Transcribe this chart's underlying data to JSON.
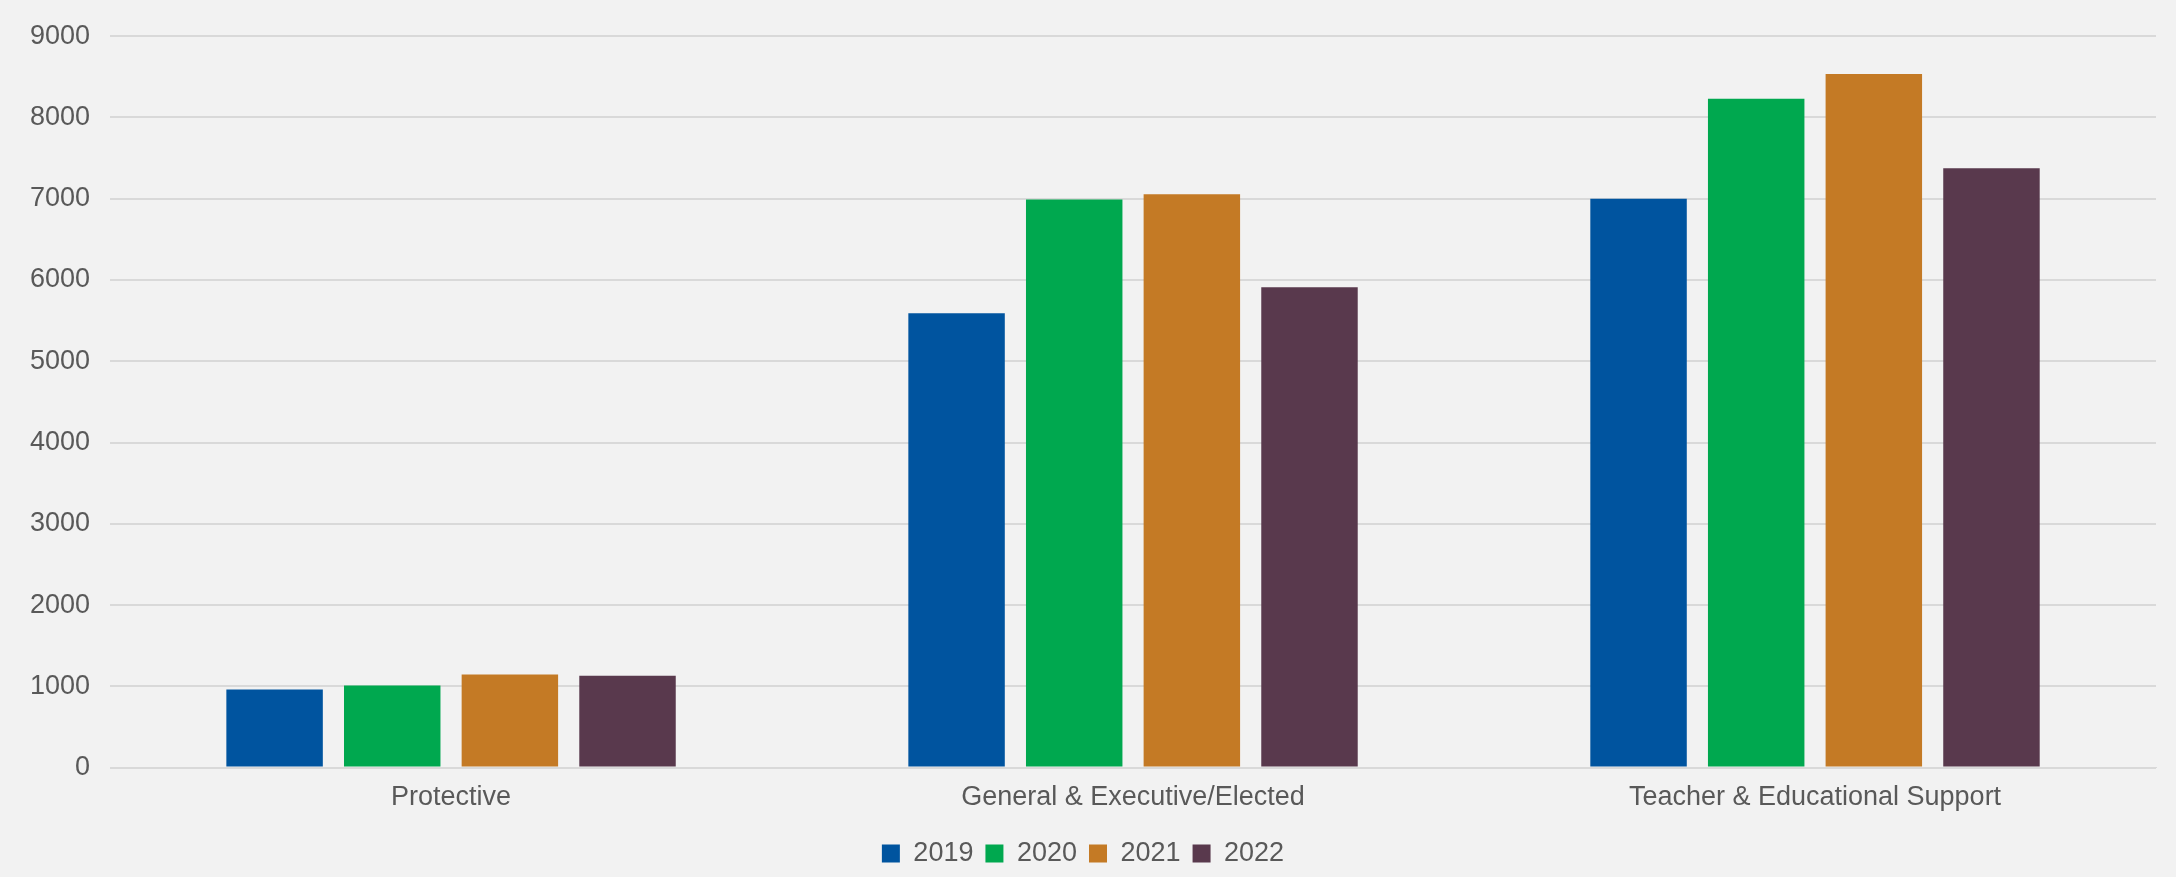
{
  "chart_data": {
    "type": "bar",
    "categories": [
      "Protective",
      "General & Executive/Elected",
      "Teacher & Educational Support"
    ],
    "series": [
      {
        "name": "2019",
        "color": "#00549f",
        "values": [
          960,
          5590,
          7000
        ]
      },
      {
        "name": "2020",
        "color": "#00a84f",
        "values": [
          1010,
          6990,
          8230
        ]
      },
      {
        "name": "2021",
        "color": "#c47a25",
        "values": [
          1145,
          7055,
          8535
        ]
      },
      {
        "name": "2022",
        "color": "#59394d",
        "values": [
          1130,
          5910,
          7375
        ]
      }
    ],
    "ylim": [
      0,
      9000
    ],
    "yticks": [
      0,
      1000,
      2000,
      3000,
      4000,
      5000,
      6000,
      7000,
      8000,
      9000
    ],
    "grid": "y",
    "legend": "bottom"
  }
}
